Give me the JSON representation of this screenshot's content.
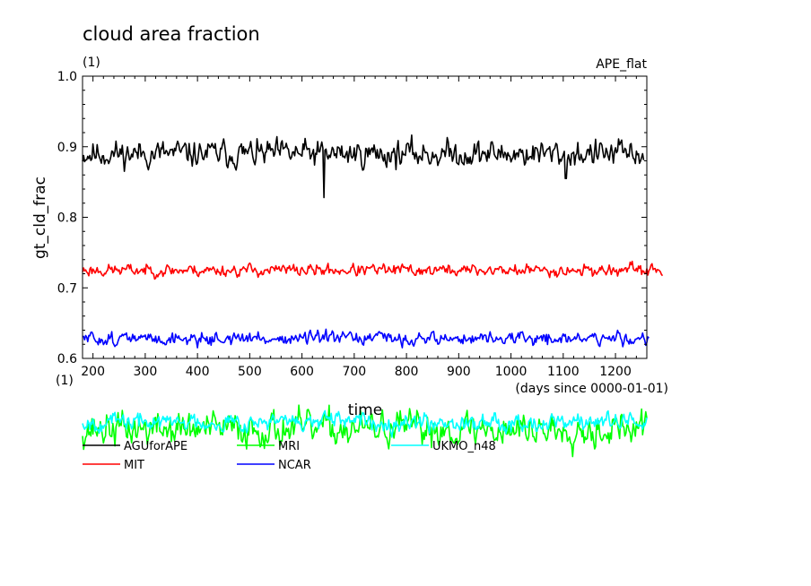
{
  "chart_data": {
    "type": "line",
    "title": "cloud area fraction",
    "y_units": "(1)",
    "x_units": "(1)",
    "experiment": "APE_flat",
    "xlabel": "time",
    "xlabel_units": "(days since 0000-01-01)",
    "ylabel": "gt_cld_frac",
    "xlim": [
      180,
      1260
    ],
    "ylim": [
      0.6,
      1.0
    ],
    "x_ticks": [
      200,
      300,
      400,
      500,
      600,
      700,
      800,
      900,
      1000,
      1100,
      1200
    ],
    "x_tick_labels": [
      "200",
      "300",
      "400",
      "500",
      "600",
      "700",
      "800",
      "900",
      "1000",
      "1100",
      "1200"
    ],
    "y_ticks": [
      0.6,
      0.7,
      0.8,
      0.9,
      1.0
    ],
    "y_tick_labels": [
      "0.6",
      "0.7",
      "0.8",
      "0.9",
      "1.0"
    ],
    "legend_position": "bottom",
    "series": [
      {
        "name": "AGUforAPE",
        "color": "#000000",
        "x_start": 180,
        "x_end": 1255,
        "step": 2,
        "mean": 0.89,
        "amplitude": 0.022,
        "seed": 11,
        "outliers": [
          [
            642,
            0.828
          ],
          [
            1105,
            0.855
          ]
        ]
      },
      {
        "name": "MIT",
        "color": "#ff0000",
        "x_start": 180,
        "x_end": 1290,
        "step": 2,
        "mean": 0.725,
        "amplitude": 0.01,
        "seed": 23,
        "outliers": []
      },
      {
        "name": "MRI",
        "color": "#00ff00",
        "x_start": 180,
        "x_end": 1260,
        "step": 2,
        "mean": 0.5,
        "amplitude": 0.028,
        "seed": 37,
        "outliers": []
      },
      {
        "name": "NCAR",
        "color": "#0000ff",
        "x_start": 180,
        "x_end": 1265,
        "step": 2,
        "mean": 0.628,
        "amplitude": 0.011,
        "seed": 51,
        "outliers": []
      },
      {
        "name": "UKMO_n48",
        "color": "#00ffff",
        "x_start": 180,
        "x_end": 1260,
        "step": 2,
        "mean": 0.51,
        "amplitude": 0.014,
        "seed": 67,
        "outliers": []
      }
    ]
  }
}
